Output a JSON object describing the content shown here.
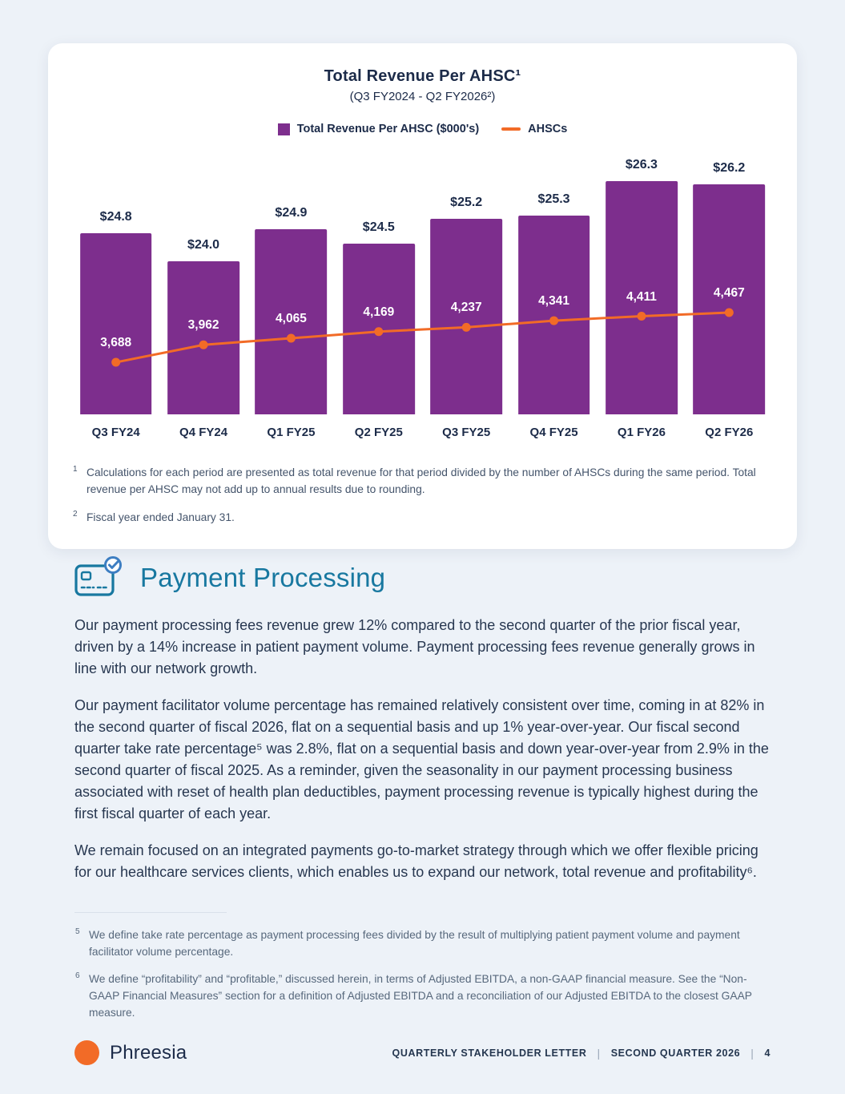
{
  "colors": {
    "purple": "#7d2e8d",
    "orange": "#f26b27",
    "navy": "#1c2b49",
    "heading_teal": "#1878a0",
    "page_bg": "#edf2f8"
  },
  "chart_card": {
    "title": "Total Revenue Per AHSC¹",
    "subtitle": "(Q3 FY2024 - Q2 FY2026²)",
    "legend": {
      "bars": "Total Revenue Per AHSC ($000's)",
      "line": "AHSCs"
    },
    "footnotes": [
      {
        "marker": "1",
        "text": "Calculations for each period are presented as total revenue for that period divided by the number of AHSCs during the same period. Total revenue per AHSC may not add up to annual results due to rounding."
      },
      {
        "marker": "2",
        "text": "Fiscal year ended January 31."
      }
    ]
  },
  "chart_data": {
    "type": "bar",
    "title": "Total Revenue Per AHSC",
    "subtitle": "(Q3 FY2024 - Q2 FY2026)",
    "xlabel": "",
    "ylabel": "",
    "legend_position": "top",
    "grid": false,
    "categories": [
      "Q3 FY24",
      "Q4 FY24",
      "Q1 FY25",
      "Q2 FY25",
      "Q3 FY25",
      "Q4 FY25",
      "Q1 FY26",
      "Q2 FY26"
    ],
    "series": [
      {
        "name": "Total Revenue Per AHSC ($000's)",
        "type": "bar",
        "color": "#7d2e8d",
        "values": [
          24.8,
          24.0,
          24.9,
          24.5,
          25.2,
          25.3,
          26.3,
          26.2
        ],
        "labels": [
          "$24.8",
          "$24.0",
          "$24.9",
          "$24.5",
          "$25.2",
          "$25.3",
          "$26.3",
          "$26.2"
        ]
      },
      {
        "name": "AHSCs",
        "type": "line",
        "color": "#f26b27",
        "values": [
          3688,
          3962,
          4065,
          4169,
          4237,
          4341,
          4411,
          4467
        ],
        "labels": [
          "3,688",
          "3,962",
          "4,065",
          "4,169",
          "4,237",
          "4,341",
          "4,411",
          "4,467"
        ]
      }
    ]
  },
  "payment_section": {
    "heading": "Payment Processing",
    "paragraphs": [
      "Our payment processing fees revenue grew 12% compared to the second quarter of the prior fiscal year, driven by a 14% increase in patient payment volume. Payment processing fees revenue generally grows in line with our network growth.",
      "Our payment facilitator volume percentage has remained relatively consistent over time, coming in at 82% in the second quarter of fiscal 2026, flat on a sequential basis and up 1% year-over-year. Our fiscal second quarter take rate percentage⁵ was 2.8%, flat on a sequential basis and down year-over-year from 2.9% in the second quarter of fiscal 2025. As a reminder, given the seasonality in our payment processing business associated with reset of health plan deductibles, payment processing revenue is typically highest during the first fiscal quarter of each year.",
      "We remain focused on an integrated payments go-to-market strategy through which we offer flexible pricing for our healthcare services clients, which enables us to expand our network, total revenue and profitability⁶."
    ],
    "footnotes": [
      {
        "marker": "5",
        "text": "We define take rate percentage as payment processing fees divided by the result of multiplying patient payment volume and payment facilitator volume percentage."
      },
      {
        "marker": "6",
        "text": "We define “profitability” and “profitable,” discussed herein, in terms of Adjusted EBITDA, a non-GAAP financial measure. See the “Non-GAAP Financial Measures” section for a definition of Adjusted EBITDA and a reconciliation of our Adjusted EBITDA to the closest GAAP measure."
      }
    ]
  },
  "footer": {
    "brand": "Phreesia",
    "meta": [
      "QUARTERLY STAKEHOLDER LETTER",
      "SECOND QUARTER 2026",
      "4"
    ]
  }
}
